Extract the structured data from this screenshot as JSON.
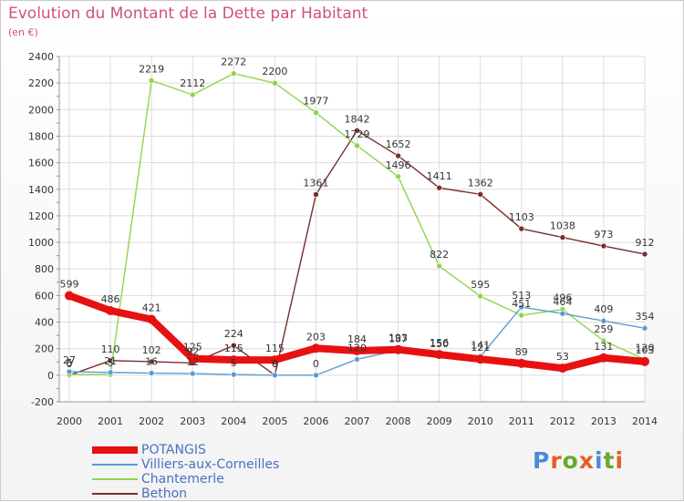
{
  "header": {
    "title": "Evolution du Montant de la Dette par Habitant",
    "unit": "(en €)"
  },
  "logo": {
    "text": "Proxiti",
    "letter_colors": [
      "#4a8ad8",
      "#e0602a",
      "#6aa82e",
      "#e0602a",
      "#4a8ad8",
      "#6aa82e",
      "#e0602a"
    ]
  },
  "chart_data": {
    "type": "line",
    "title": "Evolution du Montant de la Dette par Habitant",
    "subtitle": "(en €)",
    "xlabel": "",
    "ylabel": "",
    "x": [
      "2000",
      "2001",
      "2002",
      "2003",
      "2004",
      "2005",
      "2006",
      "2007",
      "2008",
      "2009",
      "2010",
      "2011",
      "2012",
      "2013",
      "2014"
    ],
    "ylim": [
      -200,
      2400
    ],
    "yticks": [
      -200,
      0,
      200,
      400,
      600,
      800,
      1000,
      1200,
      1400,
      1600,
      1800,
      2000,
      2200,
      2400
    ],
    "grid": true,
    "legend_position": "bottom-left",
    "series": [
      {
        "name": "POTANGIS",
        "color": "#e81010",
        "width": 8,
        "values": [
          599,
          486,
          421,
          125,
          115,
          115,
          203,
          184,
          193,
          156,
          121,
          89,
          53,
          131,
          103
        ],
        "labels": [
          "599",
          "486",
          "421",
          "125",
          "115",
          "115",
          "203",
          "184",
          "193",
          "156",
          "121",
          "89",
          "53",
          "131",
          "103"
        ]
      },
      {
        "name": "Villiers-aux-Corneilles",
        "color": "#5b9bd5",
        "width": 1.4,
        "values": [
          27,
          21,
          16,
          12,
          5,
          0,
          0,
          120,
          187,
          150,
          141,
          513,
          464,
          409,
          354
        ],
        "labels": [
          "27",
          "21",
          "16",
          "12",
          "5",
          "0",
          "0",
          "120",
          "187",
          "150",
          "141",
          "513",
          "464",
          "409",
          "354"
        ]
      },
      {
        "name": "Chantemerle",
        "color": "#8fd44c",
        "width": 1.4,
        "values": [
          5,
          5,
          2219,
          2112,
          2272,
          2200,
          1977,
          1729,
          1496,
          822,
          595,
          451,
          496,
          259,
          120
        ],
        "labels": [
          "5",
          "5",
          "2219",
          "2112",
          "2272",
          "2200",
          "1977",
          "1729",
          "1496",
          "822",
          "595",
          "451",
          "496",
          "259",
          "120"
        ]
      },
      {
        "name": "Bethon",
        "color": "#7a2d2d",
        "width": 1.4,
        "values": [
          0,
          110,
          102,
          92,
          224,
          0,
          1361,
          1842,
          1652,
          1411,
          1362,
          1103,
          1038,
          973,
          912
        ],
        "labels": [
          "0",
          "110",
          "102",
          "92",
          "224",
          "0",
          "1361",
          "1842",
          "1652",
          "1411",
          "1362",
          "1103",
          "1038",
          "973",
          "912"
        ]
      }
    ]
  }
}
